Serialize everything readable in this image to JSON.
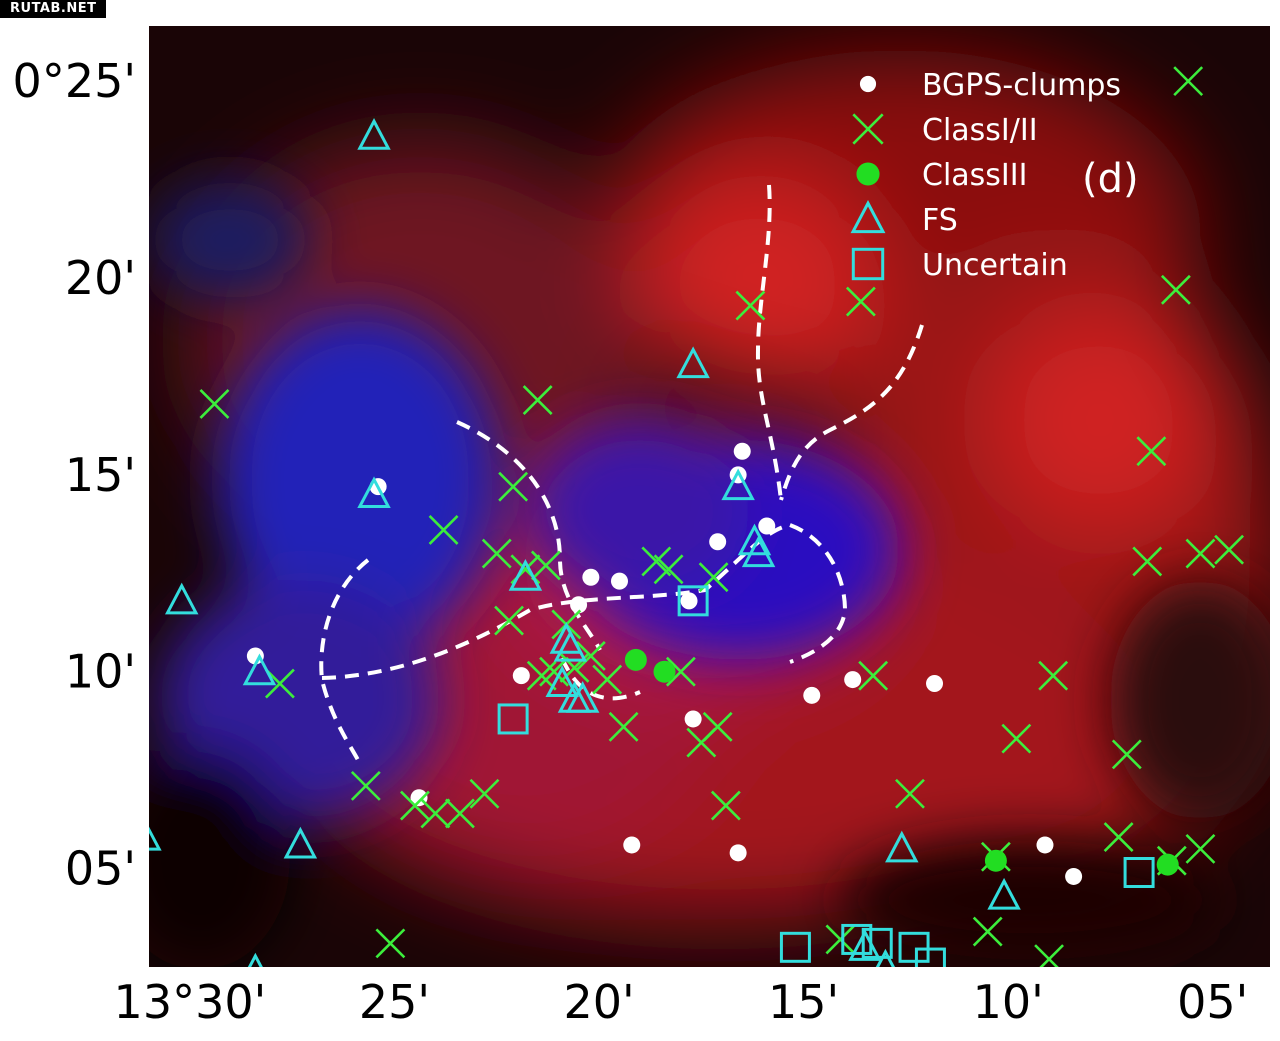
{
  "watermark": "RUTAB.NET",
  "panel_label": "(d)",
  "colors": {
    "bgps": "#ffffff",
    "class12": "#3cee3c",
    "class3": "#22dd22",
    "fs": "#33dddd",
    "uncertain": "#33dddd",
    "filament": "#ffffff"
  },
  "chart_data": {
    "type": "scatter",
    "xlabel": "",
    "ylabel": "",
    "x_unit": "arcmin of longitude (13°xx')",
    "y_unit": "arcmin of latitude (0°xx')",
    "xlim": [
      31.0,
      3.6
    ],
    "ylim": [
      2.5,
      26.4
    ],
    "grid": false,
    "legend_position": "top-right",
    "x_ticks": [
      {
        "value": 30,
        "label": "13°30'"
      },
      {
        "value": 25,
        "label": "25'"
      },
      {
        "value": 20,
        "label": "20'"
      },
      {
        "value": 15,
        "label": "15'"
      },
      {
        "value": 10,
        "label": "10'"
      },
      {
        "value": 5,
        "label": "05'"
      }
    ],
    "y_ticks": [
      {
        "value": 25,
        "label": "0°25'"
      },
      {
        "value": 20,
        "label": "20'"
      },
      {
        "value": 15,
        "label": "15'"
      },
      {
        "value": 10,
        "label": "10'"
      },
      {
        "value": 5,
        "label": "05'"
      }
    ],
    "series": [
      {
        "name": "BGPS-clumps",
        "marker": "dot",
        "color": "#ffffff",
        "points": [
          [
            16.5,
            15.6
          ],
          [
            16.6,
            15.0
          ],
          [
            17.1,
            13.3
          ],
          [
            15.9,
            13.7
          ],
          [
            19.5,
            12.3
          ],
          [
            20.2,
            12.4
          ],
          [
            20.5,
            11.7
          ],
          [
            17.8,
            11.8
          ],
          [
            21.9,
            9.9
          ],
          [
            17.7,
            8.8
          ],
          [
            14.8,
            9.4
          ],
          [
            13.8,
            9.8
          ],
          [
            11.8,
            9.7
          ],
          [
            19.2,
            5.6
          ],
          [
            16.6,
            5.4
          ],
          [
            9.1,
            5.6
          ],
          [
            8.4,
            4.8
          ],
          [
            25.4,
            14.7
          ],
          [
            24.4,
            6.8
          ],
          [
            28.4,
            10.4
          ]
        ]
      },
      {
        "name": "ClassI/II",
        "marker": "x",
        "color": "#3cee3c",
        "points": [
          [
            29.4,
            16.8
          ],
          [
            21.5,
            16.9
          ],
          [
            16.3,
            19.3
          ],
          [
            13.6,
            19.4
          ],
          [
            5.6,
            25.0
          ],
          [
            5.9,
            19.7
          ],
          [
            6.5,
            15.6
          ],
          [
            6.6,
            12.8
          ],
          [
            5.3,
            13.0
          ],
          [
            4.6,
            13.1
          ],
          [
            22.1,
            14.7
          ],
          [
            23.8,
            13.6
          ],
          [
            22.5,
            13.0
          ],
          [
            21.8,
            12.6
          ],
          [
            21.3,
            12.7
          ],
          [
            18.6,
            12.8
          ],
          [
            18.3,
            12.6
          ],
          [
            17.2,
            12.4
          ],
          [
            22.2,
            11.3
          ],
          [
            20.8,
            11.2
          ],
          [
            20.2,
            10.4
          ],
          [
            20.6,
            10.1
          ],
          [
            19.8,
            9.8
          ],
          [
            21.4,
            9.9
          ],
          [
            21.1,
            10.0
          ],
          [
            18.0,
            10.0
          ],
          [
            19.4,
            8.6
          ],
          [
            17.1,
            8.6
          ],
          [
            17.5,
            8.2
          ],
          [
            16.9,
            6.6
          ],
          [
            13.3,
            9.9
          ],
          [
            12.4,
            6.9
          ],
          [
            8.9,
            9.9
          ],
          [
            9.8,
            8.3
          ],
          [
            7.1,
            7.9
          ],
          [
            7.3,
            5.8
          ],
          [
            5.3,
            5.5
          ],
          [
            10.3,
            5.3
          ],
          [
            10.5,
            3.4
          ],
          [
            9.0,
            2.7
          ],
          [
            14.1,
            3.2
          ],
          [
            27.8,
            9.7
          ],
          [
            25.7,
            7.1
          ],
          [
            24.5,
            6.6
          ],
          [
            24.0,
            6.4
          ],
          [
            23.4,
            6.4
          ],
          [
            22.8,
            6.9
          ],
          [
            25.1,
            3.1
          ],
          [
            6.0,
            5.2
          ]
        ]
      },
      {
        "name": "ClassIII",
        "marker": "filled-dot",
        "color": "#22dd22",
        "points": [
          [
            19.1,
            10.3
          ],
          [
            18.4,
            10.0
          ],
          [
            10.3,
            5.2
          ],
          [
            6.1,
            5.1
          ]
        ]
      },
      {
        "name": "FS",
        "marker": "triangle",
        "color": "#33dddd",
        "points": [
          [
            25.5,
            23.6
          ],
          [
            25.5,
            14.5
          ],
          [
            30.2,
            11.8
          ],
          [
            28.3,
            10.0
          ],
          [
            17.7,
            17.8
          ],
          [
            16.6,
            14.7
          ],
          [
            16.2,
            13.3
          ],
          [
            16.1,
            13.0
          ],
          [
            21.8,
            12.4
          ],
          [
            20.8,
            10.8
          ],
          [
            20.7,
            10.6
          ],
          [
            20.9,
            9.7
          ],
          [
            20.6,
            9.3
          ],
          [
            20.4,
            9.3
          ],
          [
            31.1,
            5.8
          ],
          [
            27.3,
            5.6
          ],
          [
            12.6,
            5.5
          ],
          [
            10.1,
            4.3
          ],
          [
            28.4,
            2.4
          ],
          [
            13.5,
            3.0
          ],
          [
            13.0,
            2.5
          ]
        ]
      },
      {
        "name": "Uncertain",
        "marker": "square",
        "color": "#33dddd",
        "points": [
          [
            17.7,
            11.8
          ],
          [
            22.1,
            8.8
          ],
          [
            15.2,
            3.0
          ],
          [
            13.7,
            3.2
          ],
          [
            13.2,
            3.1
          ],
          [
            12.3,
            3.0
          ],
          [
            11.9,
            2.6
          ],
          [
            6.8,
            4.9
          ]
        ]
      }
    ]
  }
}
